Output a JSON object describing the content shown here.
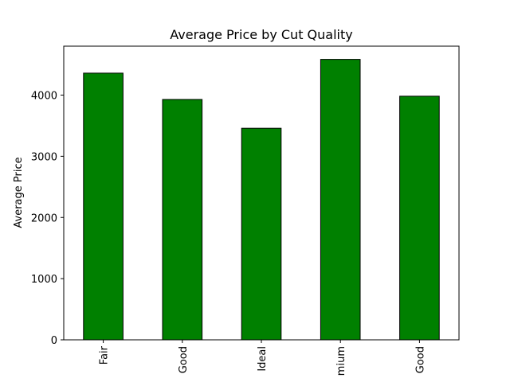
{
  "chart_data": {
    "type": "bar",
    "title": "Average Price by Cut Quality",
    "xlabel": "",
    "ylabel": "Average Price",
    "categories": [
      "Fair",
      "Good",
      "Ideal",
      "Premium",
      "Very Good"
    ],
    "visible_category_labels": [
      "Fair",
      "Good",
      "Ideal",
      "mium",
      "Good"
    ],
    "values": [
      4359,
      3929,
      3458,
      4584,
      3982
    ],
    "yticks": [
      0,
      1000,
      2000,
      3000,
      4000
    ],
    "ylim": [
      0,
      4800
    ],
    "grid": false,
    "legend": "none",
    "bar_color": "#008000",
    "bar_edge_color": "#000000"
  }
}
